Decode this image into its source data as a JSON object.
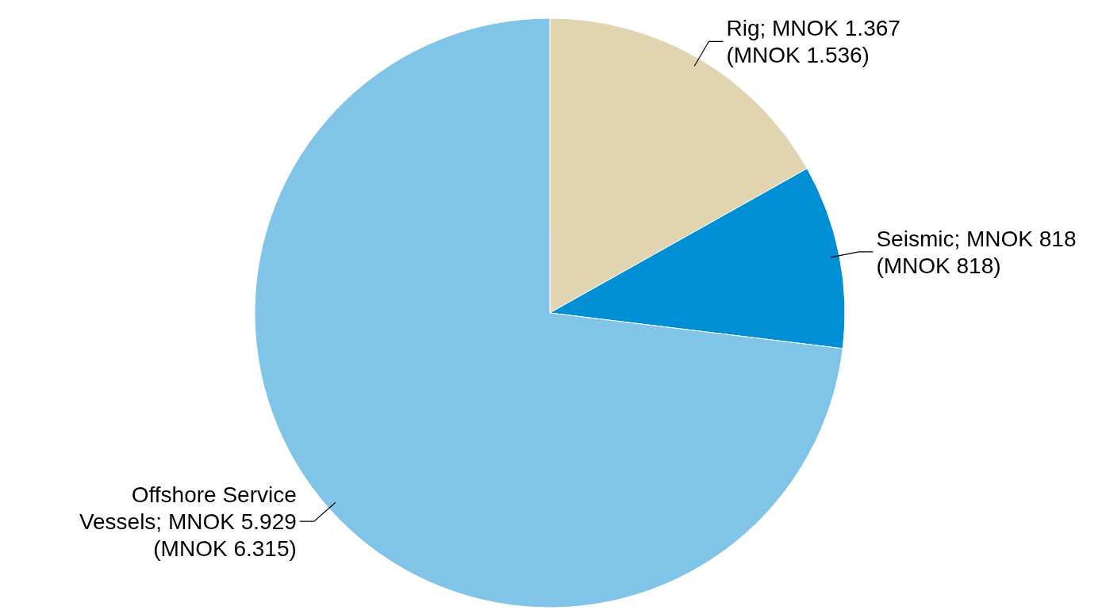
{
  "chart_data": {
    "type": "pie",
    "categories": [
      "Rig; MNOK 1.367 (MNOK 1.536)",
      "Seismic; MNOK 818  (MNOK 818)",
      "Offshore Service Vessels; MNOK 5.929 (MNOK 6.315)"
    ],
    "values": [
      1367,
      818,
      5929
    ],
    "colors": [
      "#e0d5b0",
      "#008fd5",
      "#80c5e8"
    ]
  }
}
